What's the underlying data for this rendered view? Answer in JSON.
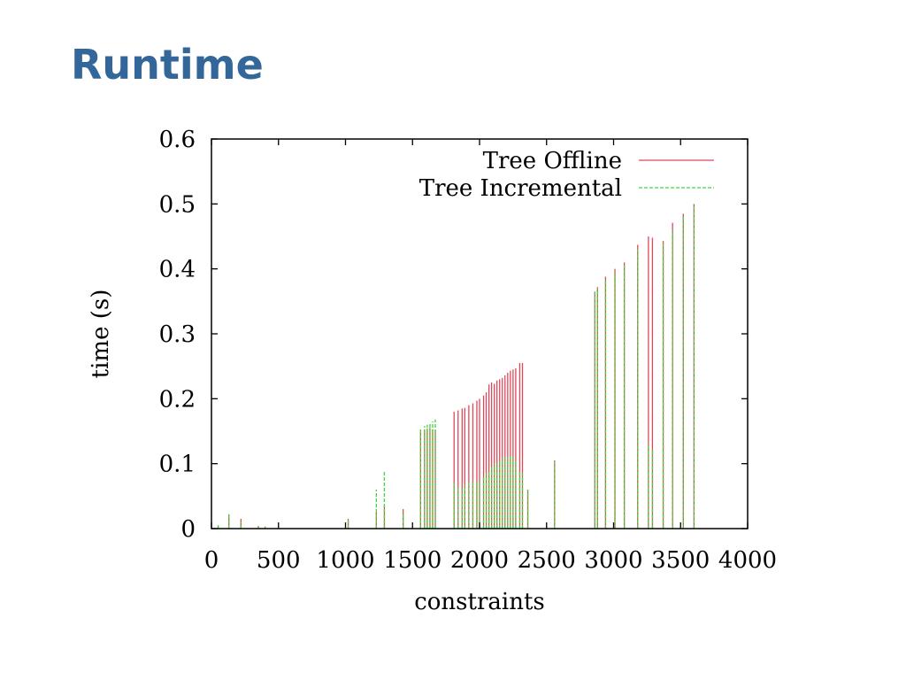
{
  "slide": {
    "title": "Runtime"
  },
  "chart_data": {
    "type": "bar",
    "xlabel": "constraints",
    "ylabel": "time (s)",
    "xlim": [
      0,
      4000
    ],
    "ylim": [
      0,
      0.6
    ],
    "xticks": [
      0,
      500,
      1000,
      1500,
      2000,
      2500,
      3000,
      3500,
      4000
    ],
    "yticks": [
      0,
      0.1,
      0.2,
      0.3,
      0.4,
      0.5,
      0.6
    ],
    "xtick_labels": [
      "0",
      "500",
      "1000",
      "1500",
      "2000",
      "2500",
      "3000",
      "3500",
      "4000"
    ],
    "ytick_labels": [
      "0",
      "0.1",
      "0.2",
      "0.3",
      "0.4",
      "0.5",
      "0.6"
    ],
    "grid": false,
    "legend_position": "top-right",
    "series": [
      {
        "name": "Tree Offline",
        "color": "#e0485a",
        "style": "solid",
        "x": [
          50,
          130,
          220,
          350,
          400,
          1020,
          1230,
          1290,
          1430,
          1560,
          1590,
          1610,
          1630,
          1650,
          1670,
          1810,
          1840,
          1870,
          1890,
          1920,
          1950,
          1980,
          2000,
          2030,
          2050,
          2070,
          2090,
          2110,
          2130,
          2150,
          2170,
          2190,
          2210,
          2230,
          2250,
          2270,
          2300,
          2320,
          2360,
          2560,
          2860,
          2880,
          2940,
          3010,
          3080,
          3180,
          3260,
          3290,
          3370,
          3440,
          3520,
          3600
        ],
        "values": [
          0.005,
          0.022,
          0.015,
          0.004,
          0.003,
          0.015,
          0.025,
          0.035,
          0.03,
          0.152,
          0.153,
          0.154,
          0.155,
          0.153,
          0.152,
          0.18,
          0.182,
          0.185,
          0.186,
          0.19,
          0.193,
          0.197,
          0.2,
          0.205,
          0.21,
          0.222,
          0.225,
          0.223,
          0.228,
          0.23,
          0.232,
          0.236,
          0.24,
          0.243,
          0.245,
          0.247,
          0.255,
          0.255,
          0.06,
          0.105,
          0.365,
          0.372,
          0.388,
          0.4,
          0.41,
          0.437,
          0.45,
          0.448,
          0.443,
          0.471,
          0.485,
          0.5
        ]
      },
      {
        "name": "Tree Incremental",
        "color": "#3dd63d",
        "style": "dashed",
        "x": [
          50,
          130,
          220,
          350,
          400,
          1020,
          1230,
          1290,
          1430,
          1560,
          1590,
          1610,
          1630,
          1650,
          1670,
          1810,
          1840,
          1870,
          1890,
          1920,
          1950,
          1980,
          2000,
          2030,
          2050,
          2070,
          2090,
          2110,
          2130,
          2150,
          2170,
          2190,
          2210,
          2230,
          2250,
          2270,
          2300,
          2320,
          2360,
          2560,
          2860,
          2880,
          2940,
          3010,
          3080,
          3180,
          3260,
          3290,
          3370,
          3440,
          3520,
          3600
        ],
        "values": [
          0.005,
          0.022,
          0.01,
          0.003,
          0.003,
          0.012,
          0.06,
          0.088,
          0.025,
          0.155,
          0.158,
          0.16,
          0.163,
          0.165,
          0.168,
          0.07,
          0.065,
          0.06,
          0.068,
          0.07,
          0.075,
          0.07,
          0.075,
          0.08,
          0.085,
          0.09,
          0.095,
          0.1,
          0.1,
          0.105,
          0.108,
          0.11,
          0.11,
          0.112,
          0.11,
          0.105,
          0.09,
          0.085,
          0.06,
          0.105,
          0.365,
          0.37,
          0.385,
          0.395,
          0.405,
          0.43,
          0.13,
          0.12,
          0.44,
          0.46,
          0.48,
          0.5
        ]
      }
    ]
  }
}
